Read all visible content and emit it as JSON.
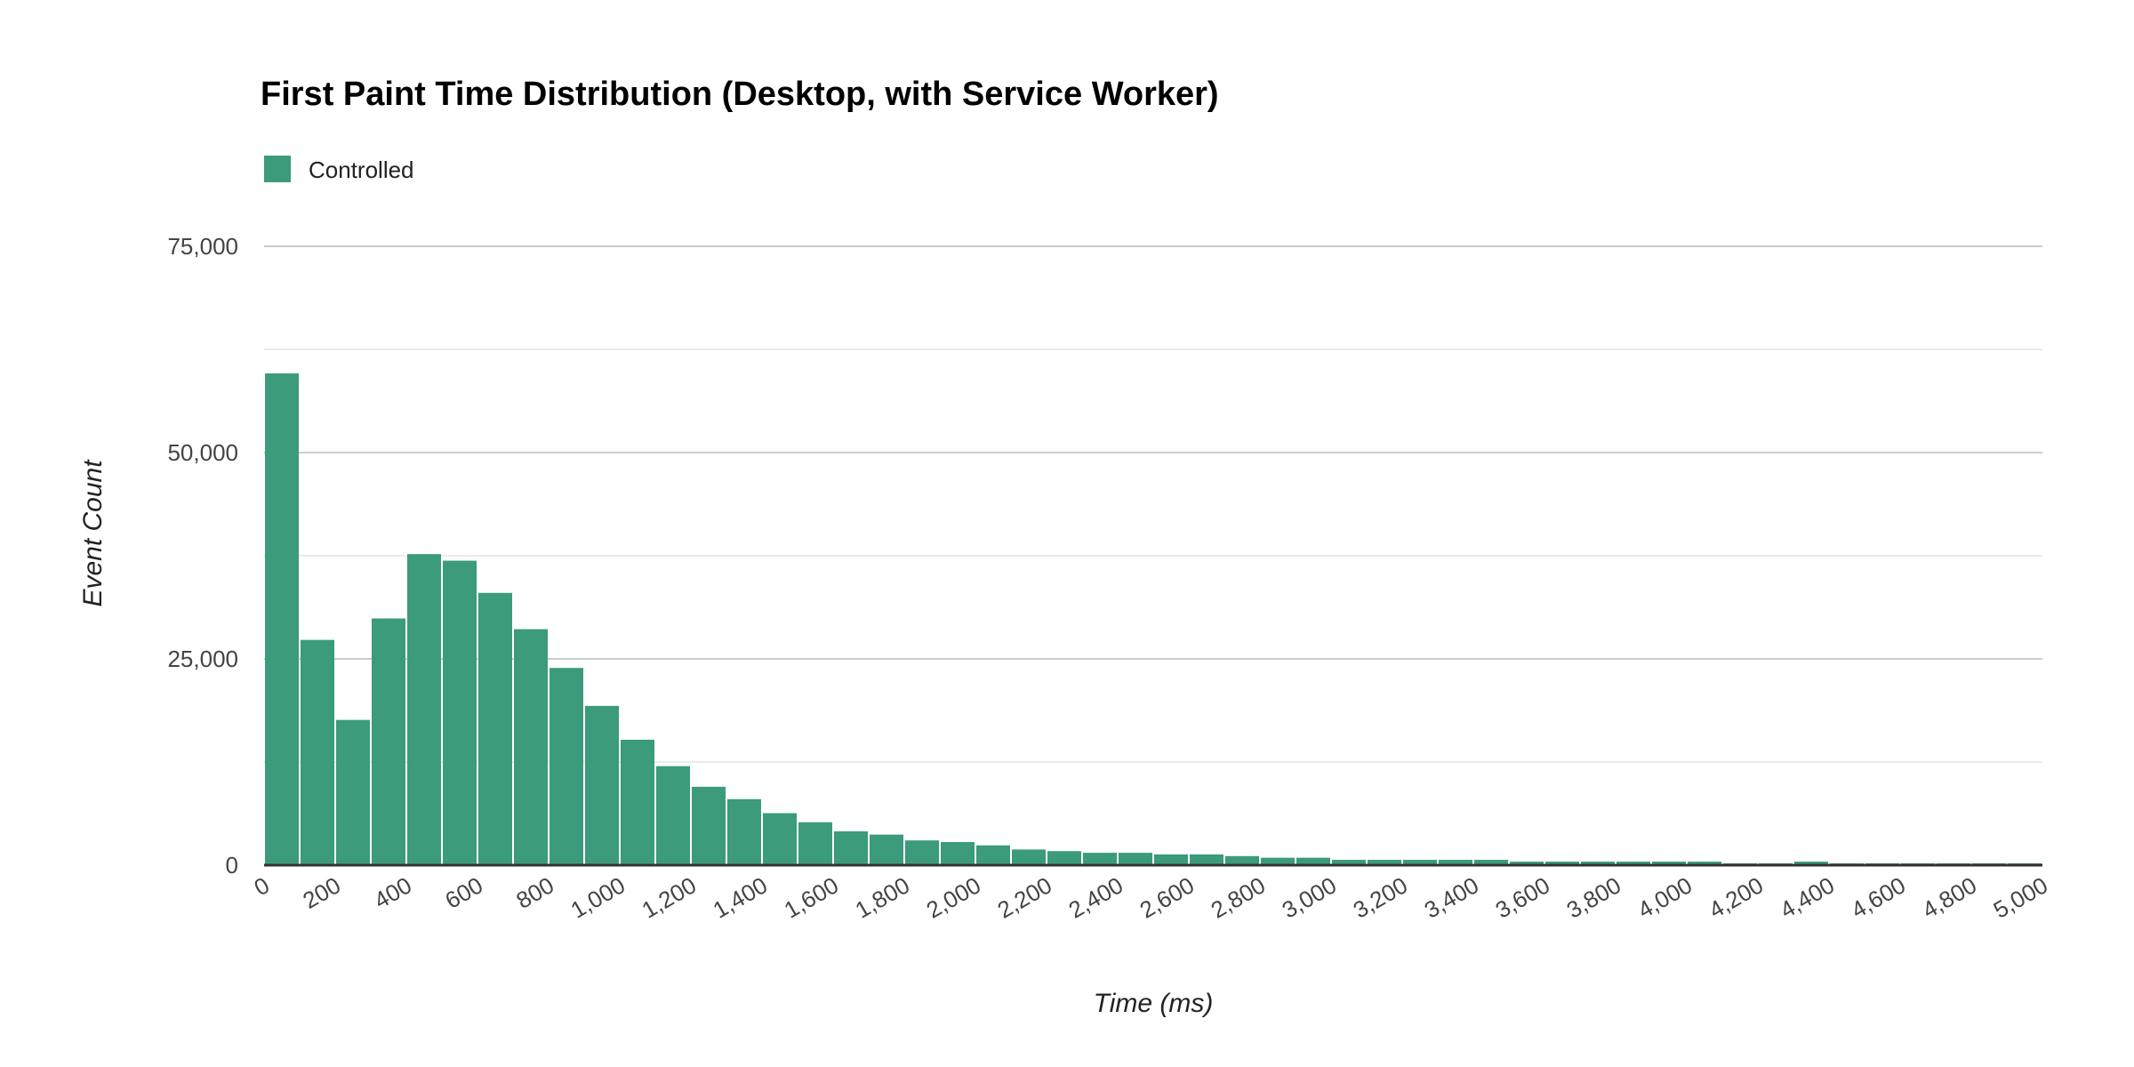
{
  "chart_data": {
    "type": "bar",
    "title": "First Paint Time Distribution (Desktop, with Service Worker)",
    "xlabel": "Time (ms)",
    "ylabel": "Event Count",
    "xlim": [
      0,
      5000
    ],
    "ylim": [
      0,
      75000
    ],
    "bin_width": 100,
    "x_ticks": [
      "0",
      "200",
      "400",
      "600",
      "800",
      "1,000",
      "1,200",
      "1,400",
      "1,600",
      "1,800",
      "2,000",
      "2,200",
      "2,400",
      "2,600",
      "2,800",
      "3,000",
      "3,200",
      "3,400",
      "3,600",
      "3,800",
      "4,000",
      "4,200",
      "4,400",
      "4,600",
      "4,800",
      "5,000"
    ],
    "y_ticks": [
      "0",
      "25,000",
      "50,000",
      "75,000"
    ],
    "y_tick_values": [
      0,
      25000,
      50000,
      75000
    ],
    "minor_gridlines": [
      12500,
      37500,
      62500
    ],
    "grid": true,
    "legend_position": "top-left",
    "series": [
      {
        "name": "Controlled",
        "color": "#3b9b7a",
        "values": [
          59600,
          27300,
          17600,
          29900,
          37700,
          36900,
          33000,
          28600,
          23900,
          19300,
          15200,
          12000,
          9500,
          8000,
          6300,
          5200,
          4100,
          3700,
          3000,
          2800,
          2400,
          1900,
          1700,
          1500,
          1500,
          1300,
          1300,
          1100,
          900,
          900,
          650,
          650,
          650,
          650,
          650,
          430,
          430,
          430,
          430,
          430,
          430,
          215,
          215,
          430,
          215,
          215,
          215,
          215,
          215,
          215
        ]
      }
    ]
  }
}
